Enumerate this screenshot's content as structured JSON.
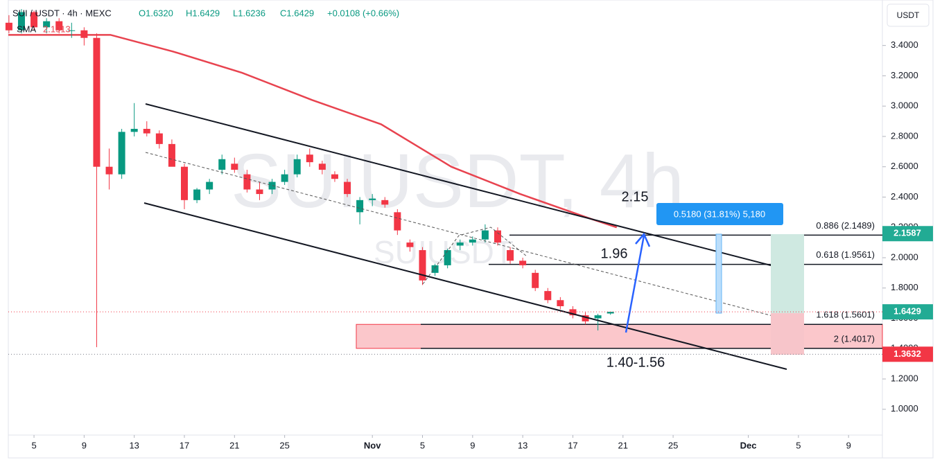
{
  "chart_data": {
    "type": "candlestick",
    "header": {
      "symbol": "SUI / USDT · 4h · MEXC",
      "open": "O1.6320",
      "high": "H1.6429",
      "low": "L1.6236",
      "close": "C1.6429",
      "change": "+0.0108 (+0.66%)",
      "sma": "SMA",
      "sma_value": "2.1913"
    },
    "watermark": "SUIUSDT, 4h",
    "watermark_small": "SUIUSDT",
    "currency": "USDT",
    "xlim": [
      1.95,
      71.7
    ],
    "ylim": [
      0.83,
      3.7
    ],
    "xticks": [
      {
        "value": 4,
        "label": "5"
      },
      {
        "value": 8,
        "label": "9"
      },
      {
        "value": 12,
        "label": "13"
      },
      {
        "value": 16,
        "label": "17"
      },
      {
        "value": 20,
        "label": "21"
      },
      {
        "value": 24,
        "label": "25"
      },
      {
        "value": 31,
        "label": "Nov"
      },
      {
        "value": 35,
        "label": "5"
      },
      {
        "value": 39,
        "label": "9"
      },
      {
        "value": 43,
        "label": "13"
      },
      {
        "value": 47,
        "label": "17"
      },
      {
        "value": 51,
        "label": "21"
      },
      {
        "value": 55,
        "label": "25"
      },
      {
        "value": 61,
        "label": "Dec"
      },
      {
        "value": 65,
        "label": "5"
      },
      {
        "value": 69,
        "label": "9"
      }
    ],
    "yticks": [
      {
        "value": 1.0,
        "label": "1.0000"
      },
      {
        "value": 1.2,
        "label": "1.2000"
      },
      {
        "value": 1.4,
        "label": "1.4000"
      },
      {
        "value": 1.6,
        "label": "1.6000"
      },
      {
        "value": 1.8,
        "label": "1.8000"
      },
      {
        "value": 2.0,
        "label": "2.0000"
      },
      {
        "value": 2.2,
        "label": "2.2000"
      },
      {
        "value": 2.4,
        "label": "2.4000"
      },
      {
        "value": 2.6,
        "label": "2.6000"
      },
      {
        "value": 2.8,
        "label": "2.8000"
      },
      {
        "value": 3.0,
        "label": "3.0000"
      },
      {
        "value": 3.2,
        "label": "3.2000"
      },
      {
        "value": 3.4,
        "label": "3.4000"
      }
    ],
    "up_color": "#089981",
    "down_color": "#f23645",
    "x": [
      2,
      3,
      4,
      5,
      6,
      7,
      8,
      9,
      10,
      11,
      12,
      13,
      14,
      15,
      16,
      17,
      18,
      19,
      20,
      21,
      22,
      23,
      24,
      25,
      26,
      27,
      28,
      29,
      30,
      31,
      32,
      33,
      34,
      35,
      36,
      37,
      38,
      39,
      40,
      41,
      42,
      43,
      44,
      45,
      46,
      47,
      48,
      49,
      50
    ],
    "open": [
      3.55,
      3.5,
      3.62,
      3.52,
      3.56,
      3.5,
      3.5,
      3.45,
      2.6,
      2.55,
      2.83,
      2.85,
      2.82,
      2.75,
      2.6,
      2.38,
      2.45,
      2.58,
      2.62,
      2.55,
      2.45,
      2.45,
      2.5,
      2.55,
      2.68,
      2.62,
      2.55,
      2.5,
      2.3,
      2.38,
      2.38,
      2.3,
      2.1,
      2.05,
      1.9,
      1.95,
      2.08,
      2.1,
      2.12,
      2.18,
      2.05,
      1.98,
      1.9,
      1.78,
      1.72,
      1.66,
      1.62,
      1.6,
      1.632
    ],
    "high": [
      3.6,
      3.64,
      3.63,
      3.58,
      3.58,
      3.55,
      3.52,
      3.48,
      2.72,
      2.85,
      3.02,
      2.9,
      2.84,
      2.78,
      2.62,
      2.46,
      2.52,
      2.68,
      2.66,
      2.58,
      2.5,
      2.52,
      2.58,
      2.68,
      2.72,
      2.64,
      2.57,
      2.52,
      2.4,
      2.42,
      2.4,
      2.32,
      2.12,
      2.07,
      1.96,
      2.06,
      2.12,
      2.14,
      2.22,
      2.2,
      2.07,
      2.0,
      1.92,
      1.8,
      1.74,
      1.68,
      1.64,
      1.63,
      1.6429
    ],
    "low": [
      3.48,
      3.48,
      3.5,
      3.48,
      3.48,
      3.45,
      3.4,
      1.41,
      2.45,
      2.52,
      2.8,
      2.8,
      2.72,
      2.62,
      2.32,
      2.36,
      2.42,
      2.55,
      2.56,
      2.43,
      2.38,
      2.42,
      2.48,
      2.53,
      2.6,
      2.55,
      2.5,
      2.4,
      2.22,
      2.34,
      2.33,
      2.15,
      2.04,
      1.82,
      1.88,
      1.93,
      2.05,
      2.08,
      2.1,
      2.08,
      1.96,
      1.93,
      1.78,
      1.7,
      1.66,
      1.6,
      1.56,
      1.52,
      1.6236
    ],
    "close": [
      3.5,
      3.62,
      3.52,
      3.56,
      3.5,
      3.5,
      3.45,
      2.6,
      2.55,
      2.83,
      2.85,
      2.82,
      2.75,
      2.6,
      2.38,
      2.45,
      2.5,
      2.65,
      2.58,
      2.45,
      2.42,
      2.5,
      2.55,
      2.65,
      2.63,
      2.58,
      2.52,
      2.42,
      2.38,
      2.39,
      2.35,
      2.18,
      2.07,
      1.85,
      1.95,
      2.05,
      2.1,
      2.12,
      2.18,
      2.1,
      1.98,
      1.95,
      1.8,
      1.72,
      1.68,
      1.62,
      1.58,
      1.62,
      1.6429
    ],
    "sma": {
      "name": "SMA",
      "color": "#e8434f",
      "x": [
        1.95,
        10.1,
        15.1,
        20.6,
        26.2,
        31.7,
        37.3,
        42.8,
        48.3,
        50.5
      ],
      "values": [
        3.47,
        3.47,
        3.36,
        3.22,
        3.04,
        2.88,
        2.6,
        2.42,
        2.26,
        2.2
      ]
    },
    "fib_levels": [
      {
        "value": 2.1489,
        "label": "0.886 (2.1489)"
      },
      {
        "value": 1.9561,
        "label": "0.618 (1.9561)"
      },
      {
        "value": 1.5601,
        "label": "1.618 (1.5601)"
      },
      {
        "value": 1.4017,
        "label": "2 (1.4017)"
      }
    ],
    "price_tags": [
      {
        "value": 2.1587,
        "color": "#22ab94"
      },
      {
        "value": 1.6429,
        "color": "#22ab94"
      },
      {
        "value": 1.3632,
        "color": "#f23645"
      }
    ],
    "annotations": {
      "target_high": "2.15",
      "target_mid": "1.96",
      "zone": "1.40-1.56",
      "measure": "0.5180 (31.81%) 5,180"
    }
  }
}
